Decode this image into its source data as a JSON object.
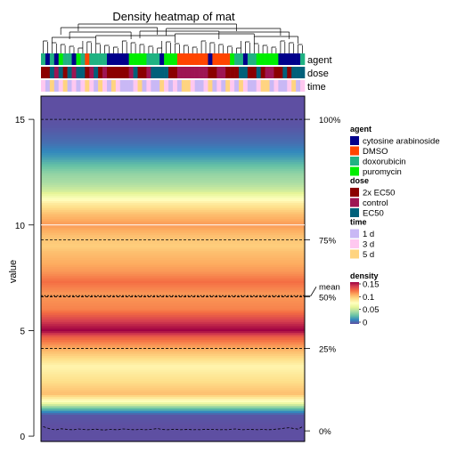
{
  "chart_data": {
    "type": "heatmap",
    "title": "Density heatmap of mat",
    "ylabel": "value",
    "xlabel": "",
    "ylim": [
      -0.25,
      16.1
    ],
    "y_ticks": [
      0,
      5,
      10,
      15
    ],
    "grid": false,
    "legend_placement": "right",
    "n_columns": 60,
    "annotations": [
      {
        "name": "agent",
        "levels": [
          {
            "label": "cytosine arabinoside",
            "color": "#00008B"
          },
          {
            "label": "DMSO",
            "color": "#FF4500"
          },
          {
            "label": "doxorubicin",
            "color": "#20B282"
          },
          {
            "label": "puromycin",
            "color": "#00EE00"
          }
        ],
        "values": [
          "doxorubicin",
          "cytosine arabinoside",
          "doxorubicin",
          "cytosine arabinoside",
          "puromycin",
          "doxorubicin",
          "doxorubicin",
          "cytosine arabinoside",
          "puromycin",
          "doxorubicin",
          "DMSO",
          "doxorubicin",
          "doxorubicin",
          "doxorubicin",
          "doxorubicin",
          "cytosine arabinoside",
          "cytosine arabinoside",
          "cytosine arabinoside",
          "cytosine arabinoside",
          "cytosine arabinoside",
          "puromycin",
          "puromycin",
          "puromycin",
          "puromycin",
          "doxorubicin",
          "doxorubicin",
          "doxorubicin",
          "cytosine arabinoside",
          "puromycin",
          "puromycin",
          "puromycin",
          "DMSO",
          "DMSO",
          "DMSO",
          "DMSO",
          "DMSO",
          "DMSO",
          "DMSO",
          "cytosine arabinoside",
          "DMSO",
          "DMSO",
          "DMSO",
          "DMSO",
          "puromycin",
          "doxorubicin",
          "doxorubicin",
          "cytosine arabinoside",
          "doxorubicin",
          "doxorubicin",
          "puromycin",
          "puromycin",
          "puromycin",
          "puromycin",
          "puromycin",
          "cytosine arabinoside",
          "cytosine arabinoside",
          "cytosine arabinoside",
          "cytosine arabinoside",
          "cytosine arabinoside",
          "doxorubicin"
        ]
      },
      {
        "name": "dose",
        "levels": [
          {
            "label": "2x EC50",
            "color": "#8B0000"
          },
          {
            "label": "control",
            "color": "#9E1553"
          },
          {
            "label": "EC50",
            "color": "#00607A"
          }
        ],
        "values": [
          "2x EC50",
          "2x EC50",
          "EC50",
          "control",
          "EC50",
          "2x EC50",
          "EC50",
          "control",
          "EC50",
          "EC50",
          "2x EC50",
          "control",
          "EC50",
          "2x EC50",
          "control",
          "2x EC50",
          "2x EC50",
          "2x EC50",
          "2x EC50",
          "2x EC50",
          "control",
          "EC50",
          "2x EC50",
          "2x EC50",
          "control",
          "EC50",
          "EC50",
          "EC50",
          "EC50",
          "2x EC50",
          "2x EC50",
          "control",
          "control",
          "control",
          "control",
          "control",
          "control",
          "control",
          "2x EC50",
          "2x EC50",
          "control",
          "control",
          "2x EC50",
          "2x EC50",
          "2x EC50",
          "EC50",
          "EC50",
          "2x EC50",
          "2x EC50",
          "EC50",
          "2x EC50",
          "control",
          "control",
          "2x EC50",
          "2x EC50",
          "EC50",
          "2x EC50",
          "EC50",
          "EC50",
          "EC50"
        ]
      },
      {
        "name": "time",
        "levels": [
          {
            "label": "1 d",
            "color": "#C9B8F5"
          },
          {
            "label": "3 d",
            "color": "#FFC8F0"
          },
          {
            "label": "5 d",
            "color": "#FFD480"
          }
        ],
        "values": [
          "3 d",
          "1 d",
          "5 d",
          "1 d",
          "3 d",
          "5 d",
          "1 d",
          "3 d",
          "1 d",
          "3 d",
          "5 d",
          "3 d",
          "1 d",
          "5 d",
          "3 d",
          "1 d",
          "5 d",
          "3 d",
          "1 d",
          "1 d",
          "1 d",
          "3 d",
          "5 d",
          "1 d",
          "3 d",
          "1 d",
          "1 d",
          "5 d",
          "3 d",
          "1 d",
          "3 d",
          "1 d",
          "5 d",
          "5 d",
          "3 d",
          "1 d",
          "1 d",
          "3 d",
          "5 d",
          "1 d",
          "3 d",
          "1 d",
          "5 d",
          "3 d",
          "1 d",
          "5 d",
          "3 d",
          "1 d",
          "1 d",
          "3 d",
          "5 d",
          "5 d",
          "1 d",
          "3 d",
          "1 d",
          "1 d",
          "3 d",
          "5 d",
          "1 d",
          "3 d"
        ]
      }
    ],
    "density_profile": {
      "y": [
        -0.25,
        0.0,
        0.5,
        1.0,
        1.3,
        1.6,
        2.0,
        2.6,
        3.3,
        4.0,
        4.7,
        5.0,
        5.3,
        6.0,
        6.7,
        7.3,
        7.8,
        8.2,
        8.7,
        9.0,
        9.5,
        10.0,
        10.5,
        11.0,
        11.3,
        11.6,
        12.0,
        12.4,
        12.8,
        13.3,
        13.9,
        14.6,
        15.2,
        16.1
      ],
      "density": [
        0.0,
        0.0,
        0.0,
        0.002,
        0.03,
        0.07,
        0.1,
        0.09,
        0.08,
        0.1,
        0.125,
        0.15,
        0.14,
        0.115,
        0.11,
        0.12,
        0.11,
        0.105,
        0.1,
        0.095,
        0.1,
        0.11,
        0.1,
        0.085,
        0.07,
        0.055,
        0.045,
        0.04,
        0.03,
        0.018,
        0.008,
        0.002,
        0.0,
        0.0
      ]
    },
    "density_scale": {
      "title": "density",
      "ticks": [
        {
          "label": "0.15",
          "value": 0.15
        },
        {
          "label": "0.1",
          "value": 0.1
        },
        {
          "label": "0.05",
          "value": 0.05
        },
        {
          "label": "0",
          "value": 0
        }
      ],
      "stops": [
        "#5E4FA2",
        "#3288BD",
        "#66C2A5",
        "#ABDDA4",
        "#E6F598",
        "#FFFFBF",
        "#FEE08B",
        "#FDAE61",
        "#F46D43",
        "#D53E4F",
        "#9E0142"
      ]
    },
    "quantiles": [
      {
        "label": "0%",
        "value": 0.25
      },
      {
        "label": "25%",
        "value": 4.15
      },
      {
        "label": "50%",
        "value": 6.6
      },
      {
        "label": "75%",
        "value": 9.3
      },
      {
        "label": "100%",
        "value": 15.0
      }
    ],
    "mean": {
      "label": "mean",
      "value": 6.65
    },
    "separator_line": {
      "value": 10.0
    },
    "min_line": {
      "values": [
        0.45,
        0.38,
        0.32,
        0.3,
        0.35,
        0.33,
        0.31,
        0.3,
        0.34,
        0.32,
        0.3,
        0.31,
        0.33,
        0.3,
        0.29,
        0.32,
        0.31,
        0.3,
        0.34,
        0.33,
        0.31,
        0.3,
        0.32,
        0.3,
        0.31,
        0.33,
        0.36,
        0.32,
        0.3,
        0.31,
        0.33,
        0.3,
        0.31,
        0.32,
        0.3,
        0.31,
        0.3,
        0.33,
        0.31,
        0.32,
        0.3,
        0.31,
        0.3,
        0.33,
        0.34,
        0.3,
        0.31,
        0.32,
        0.31,
        0.3,
        0.32,
        0.3,
        0.31,
        0.33,
        0.35,
        0.38,
        0.4,
        0.36,
        0.33,
        0.45
      ]
    }
  }
}
